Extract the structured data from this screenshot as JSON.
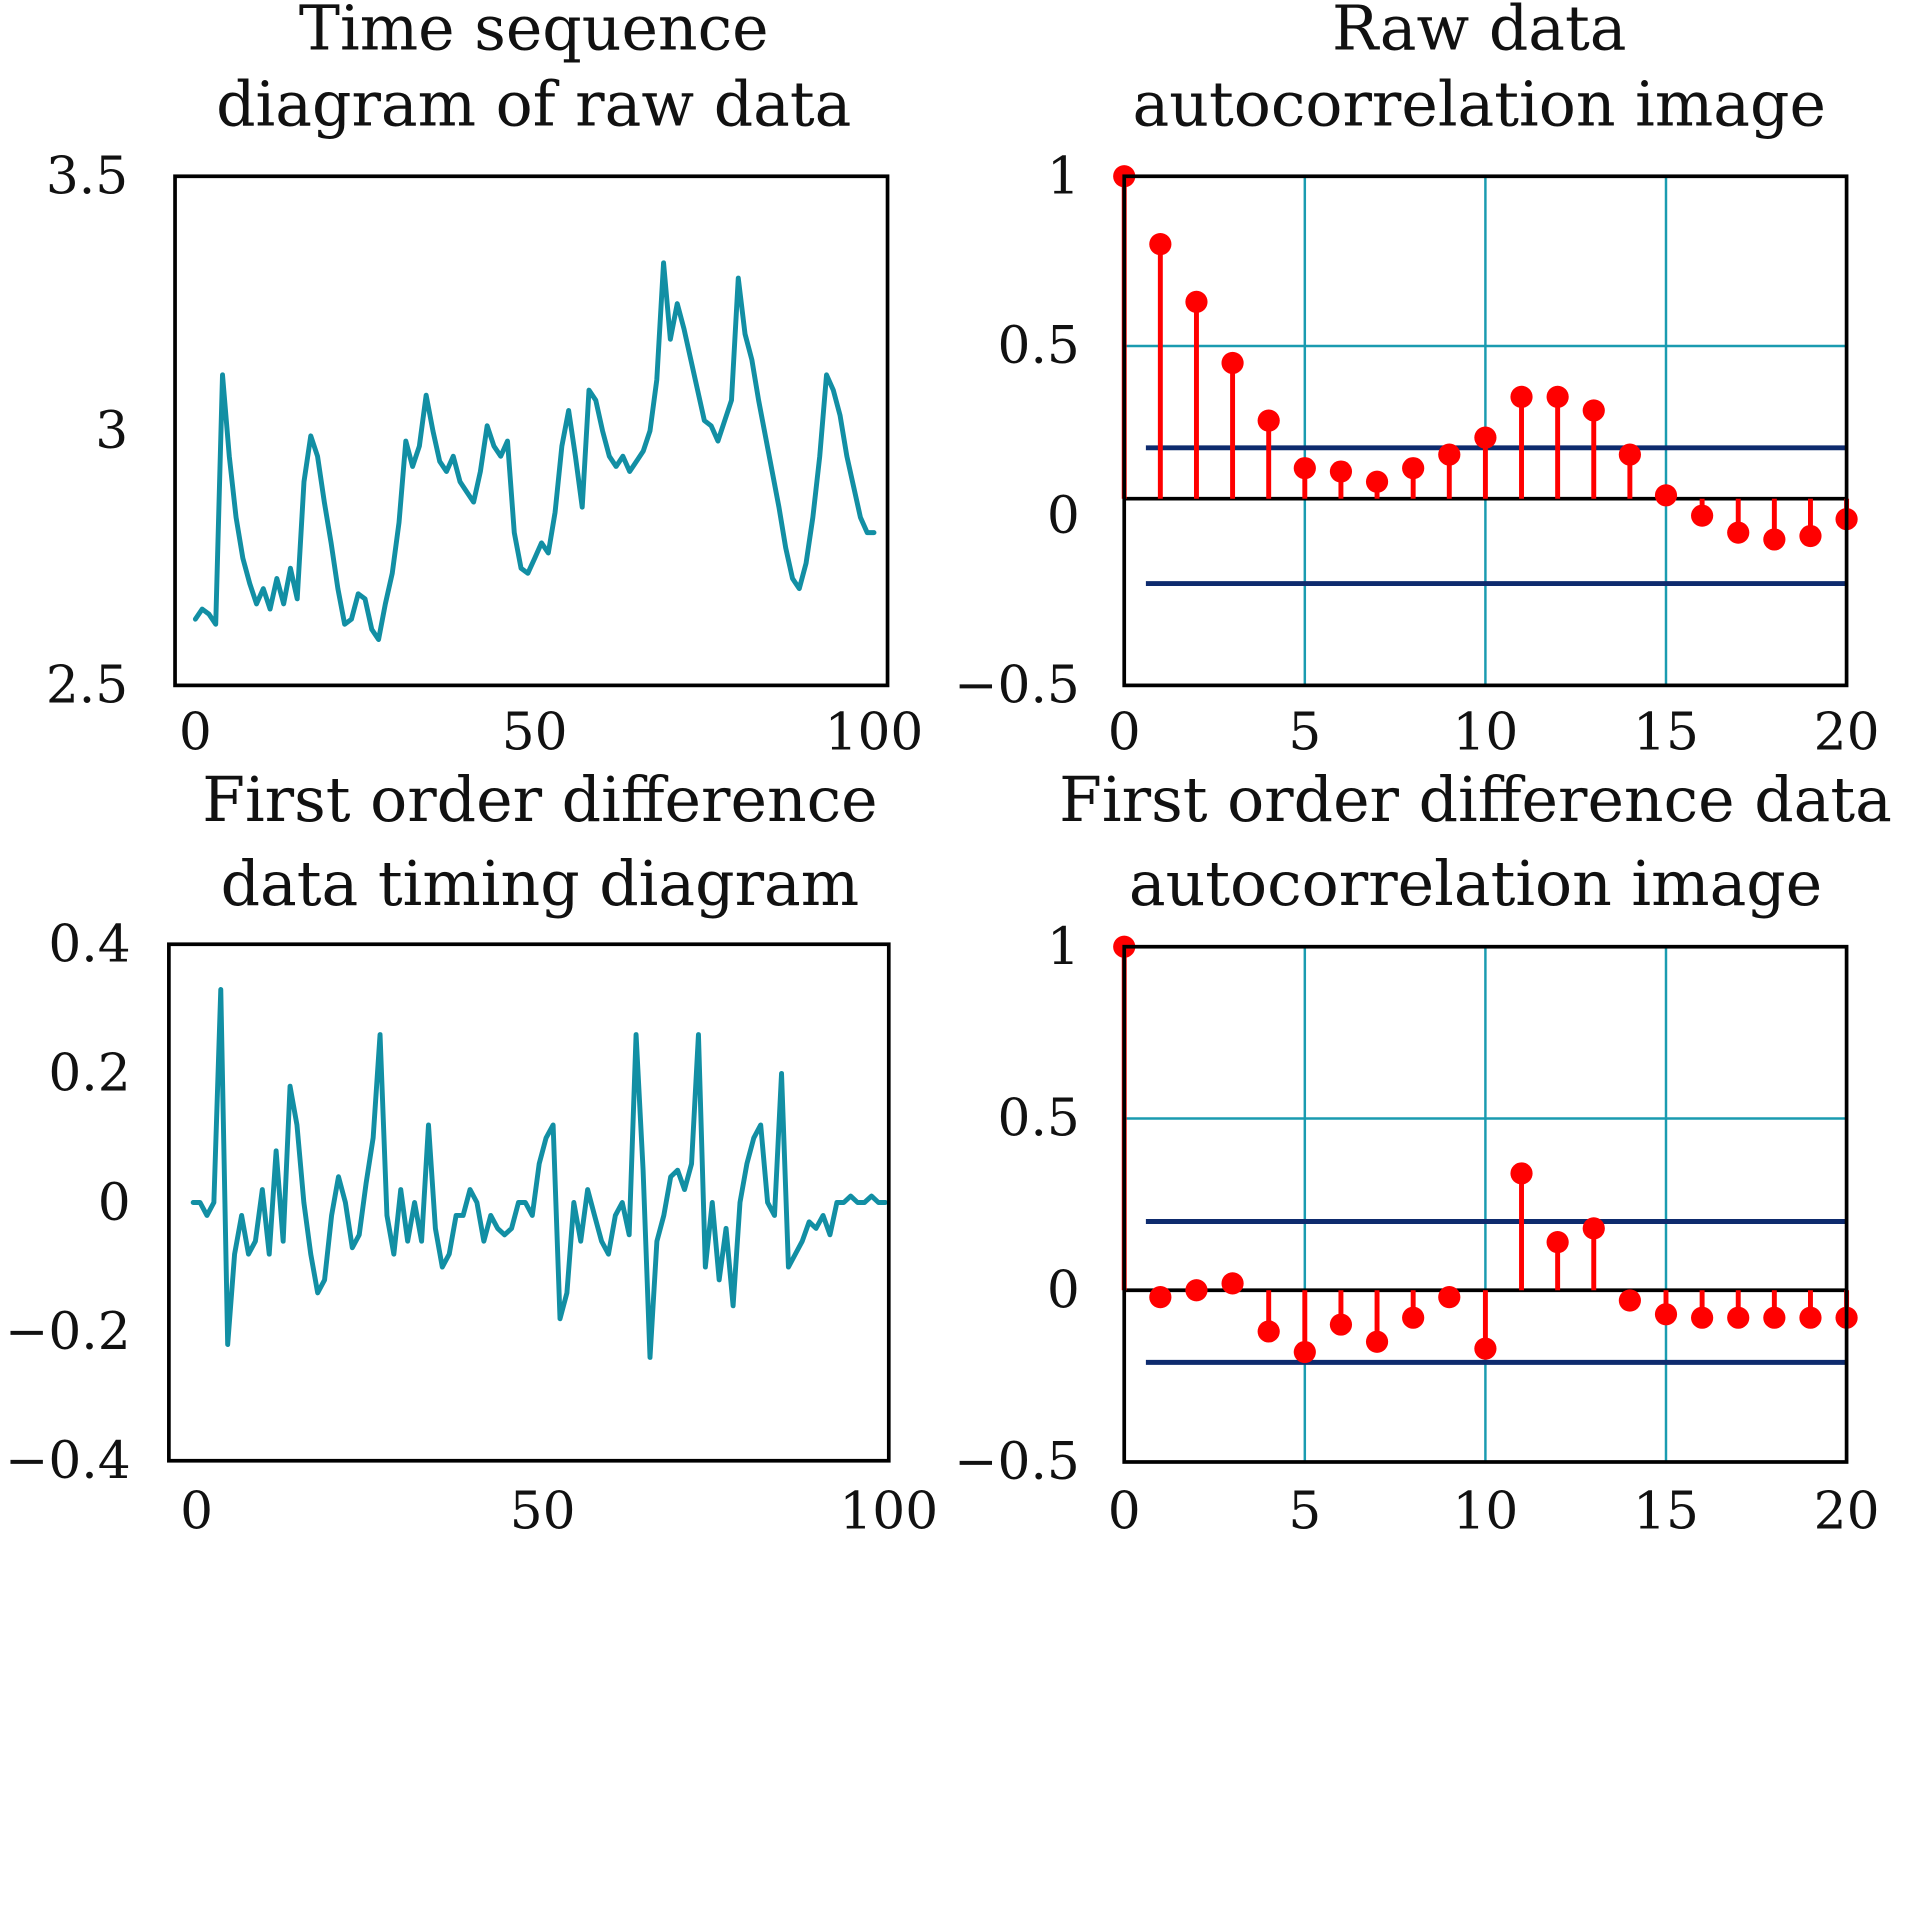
{
  "colors": {
    "line": "#128FA4",
    "stem": "#FF0000",
    "grid": "#1A9BB0",
    "bound": "#0E2B6E",
    "axis": "#000000"
  },
  "chart_data": [
    {
      "id": "raw_ts",
      "type": "line",
      "title": [
        "Time sequence",
        "diagram of raw data"
      ],
      "xlim": [
        -3,
        102
      ],
      "ylim": [
        2.5,
        3.5
      ],
      "xticks": [
        0,
        50,
        100
      ],
      "xtick_labels": [
        "0",
        "50",
        "100"
      ],
      "yticks": [
        2.5,
        3,
        3.5
      ],
      "ytick_labels": [
        "2.5",
        "3",
        "3.5"
      ],
      "series": [
        {
          "name": "raw",
          "x_start": 0,
          "values": [
            2.63,
            2.65,
            2.64,
            2.62,
            3.11,
            2.95,
            2.83,
            2.75,
            2.7,
            2.66,
            2.69,
            2.65,
            2.71,
            2.66,
            2.73,
            2.67,
            2.9,
            2.99,
            2.95,
            2.86,
            2.78,
            2.69,
            2.62,
            2.63,
            2.68,
            2.67,
            2.61,
            2.59,
            2.66,
            2.72,
            2.82,
            2.98,
            2.93,
            2.97,
            3.07,
            3.0,
            2.94,
            2.92,
            2.95,
            2.9,
            2.88,
            2.86,
            2.92,
            3.01,
            2.97,
            2.95,
            2.98,
            2.8,
            2.73,
            2.72,
            2.75,
            2.78,
            2.76,
            2.84,
            2.97,
            3.04,
            2.95,
            2.85,
            3.08,
            3.06,
            3.0,
            2.95,
            2.93,
            2.95,
            2.92,
            2.94,
            2.96,
            3.0,
            3.1,
            3.33,
            3.18,
            3.25,
            3.2,
            3.14,
            3.08,
            3.02,
            3.01,
            2.98,
            3.02,
            3.06,
            3.3,
            3.19,
            3.14,
            3.06,
            2.99,
            2.92,
            2.85,
            2.77,
            2.71,
            2.69,
            2.74,
            2.83,
            2.95,
            3.11,
            3.08,
            3.03,
            2.95,
            2.89,
            2.83,
            2.8,
            2.8
          ]
        }
      ]
    },
    {
      "id": "raw_acf",
      "type": "stem",
      "title": [
        "Raw data",
        "autocorrelation image"
      ],
      "xlim": [
        0,
        20
      ],
      "ylim": [
        -0.5,
        1
      ],
      "xticks": [
        0,
        5,
        10,
        15,
        20
      ],
      "xtick_labels": [
        "0",
        "5",
        "10",
        "15",
        "20"
      ],
      "yticks": [
        -0.5,
        0,
        0.5,
        1
      ],
      "ytick_labels": [
        "−0.5",
        "0",
        "0.5",
        "1"
      ],
      "grid_x": [
        5,
        10,
        15
      ],
      "grid_y": [
        0.5
      ],
      "zero_line": 0.05,
      "confidence_bounds": [
        0.2,
        -0.2
      ],
      "bound_x_start": 0.6,
      "lags": [
        0,
        1,
        2,
        3,
        4,
        5,
        6,
        7,
        8,
        9,
        10,
        11,
        12,
        13,
        14,
        15,
        16,
        17,
        18,
        19,
        20
      ],
      "values": [
        1.0,
        0.8,
        0.63,
        0.45,
        0.28,
        0.14,
        0.13,
        0.1,
        0.14,
        0.18,
        0.23,
        0.35,
        0.35,
        0.31,
        0.18,
        0.06,
        0.0,
        -0.05,
        -0.07,
        -0.06,
        -0.01
      ]
    },
    {
      "id": "diff_ts",
      "type": "line",
      "title": [
        "First order difference",
        "data timing diagram"
      ],
      "xlim": [
        -4,
        100
      ],
      "ylim": [
        -0.4,
        0.4
      ],
      "xticks": [
        0,
        50,
        100
      ],
      "xtick_labels": [
        "0",
        "50",
        "100"
      ],
      "yticks": [
        -0.4,
        -0.2,
        0,
        0.2,
        0.4
      ],
      "ytick_labels": [
        "−0.4",
        "−0.2",
        "0",
        "0.2",
        "0.4"
      ],
      "series": [
        {
          "name": "diff",
          "x_start": -0.5,
          "values": [
            0.0,
            0.0,
            -0.02,
            0.0,
            0.33,
            -0.22,
            -0.08,
            -0.02,
            -0.08,
            -0.06,
            0.02,
            -0.08,
            0.08,
            -0.06,
            0.18,
            0.12,
            0.0,
            -0.08,
            -0.14,
            -0.12,
            -0.02,
            0.04,
            0.0,
            -0.07,
            -0.05,
            0.03,
            0.1,
            0.26,
            -0.02,
            -0.08,
            0.02,
            -0.06,
            0.0,
            -0.06,
            0.12,
            -0.04,
            -0.1,
            -0.08,
            -0.02,
            -0.02,
            0.02,
            0.0,
            -0.06,
            -0.02,
            -0.04,
            -0.05,
            -0.04,
            0.0,
            0.0,
            -0.02,
            0.06,
            0.1,
            0.12,
            -0.18,
            -0.14,
            0.0,
            -0.06,
            0.02,
            -0.02,
            -0.06,
            -0.08,
            -0.02,
            0.0,
            -0.05,
            0.26,
            0.05,
            -0.24,
            -0.06,
            -0.02,
            0.04,
            0.05,
            0.02,
            0.06,
            0.26,
            -0.1,
            0.0,
            -0.12,
            -0.04,
            -0.16,
            0.0,
            0.06,
            0.1,
            0.12,
            0.0,
            -0.02,
            0.2,
            -0.1,
            -0.08,
            -0.06,
            -0.03,
            -0.04,
            -0.02,
            -0.05,
            0.0,
            0.0,
            0.01,
            0.0,
            0.0,
            0.01,
            0.0,
            0.0
          ]
        }
      ]
    },
    {
      "id": "diff_acf",
      "type": "stem",
      "title": [
        "First order difference data",
        "autocorrelation image"
      ],
      "xlim": [
        0,
        20
      ],
      "ylim": [
        -0.5,
        1
      ],
      "xticks": [
        0,
        5,
        10,
        15,
        20
      ],
      "xtick_labels": [
        "0",
        "5",
        "10",
        "15",
        "20"
      ],
      "yticks": [
        -0.5,
        0,
        0.5,
        1
      ],
      "ytick_labels": [
        "−0.5",
        "0",
        "0.5",
        "1"
      ],
      "grid_x": [
        5,
        10,
        15
      ],
      "grid_y": [
        0.5
      ],
      "zero_line": 0,
      "confidence_bounds": [
        0.2,
        -0.21
      ],
      "bound_x_start": 0.6,
      "lags": [
        0,
        1,
        2,
        3,
        4,
        5,
        6,
        7,
        8,
        9,
        10,
        11,
        12,
        13,
        14,
        15,
        16,
        17,
        18,
        19,
        20
      ],
      "values": [
        1.0,
        -0.02,
        0.0,
        0.02,
        -0.12,
        -0.18,
        -0.1,
        -0.15,
        -0.08,
        -0.02,
        -0.17,
        0.34,
        0.14,
        0.18,
        -0.03,
        -0.07,
        -0.08,
        -0.08,
        -0.08,
        -0.08,
        -0.08
      ]
    }
  ]
}
